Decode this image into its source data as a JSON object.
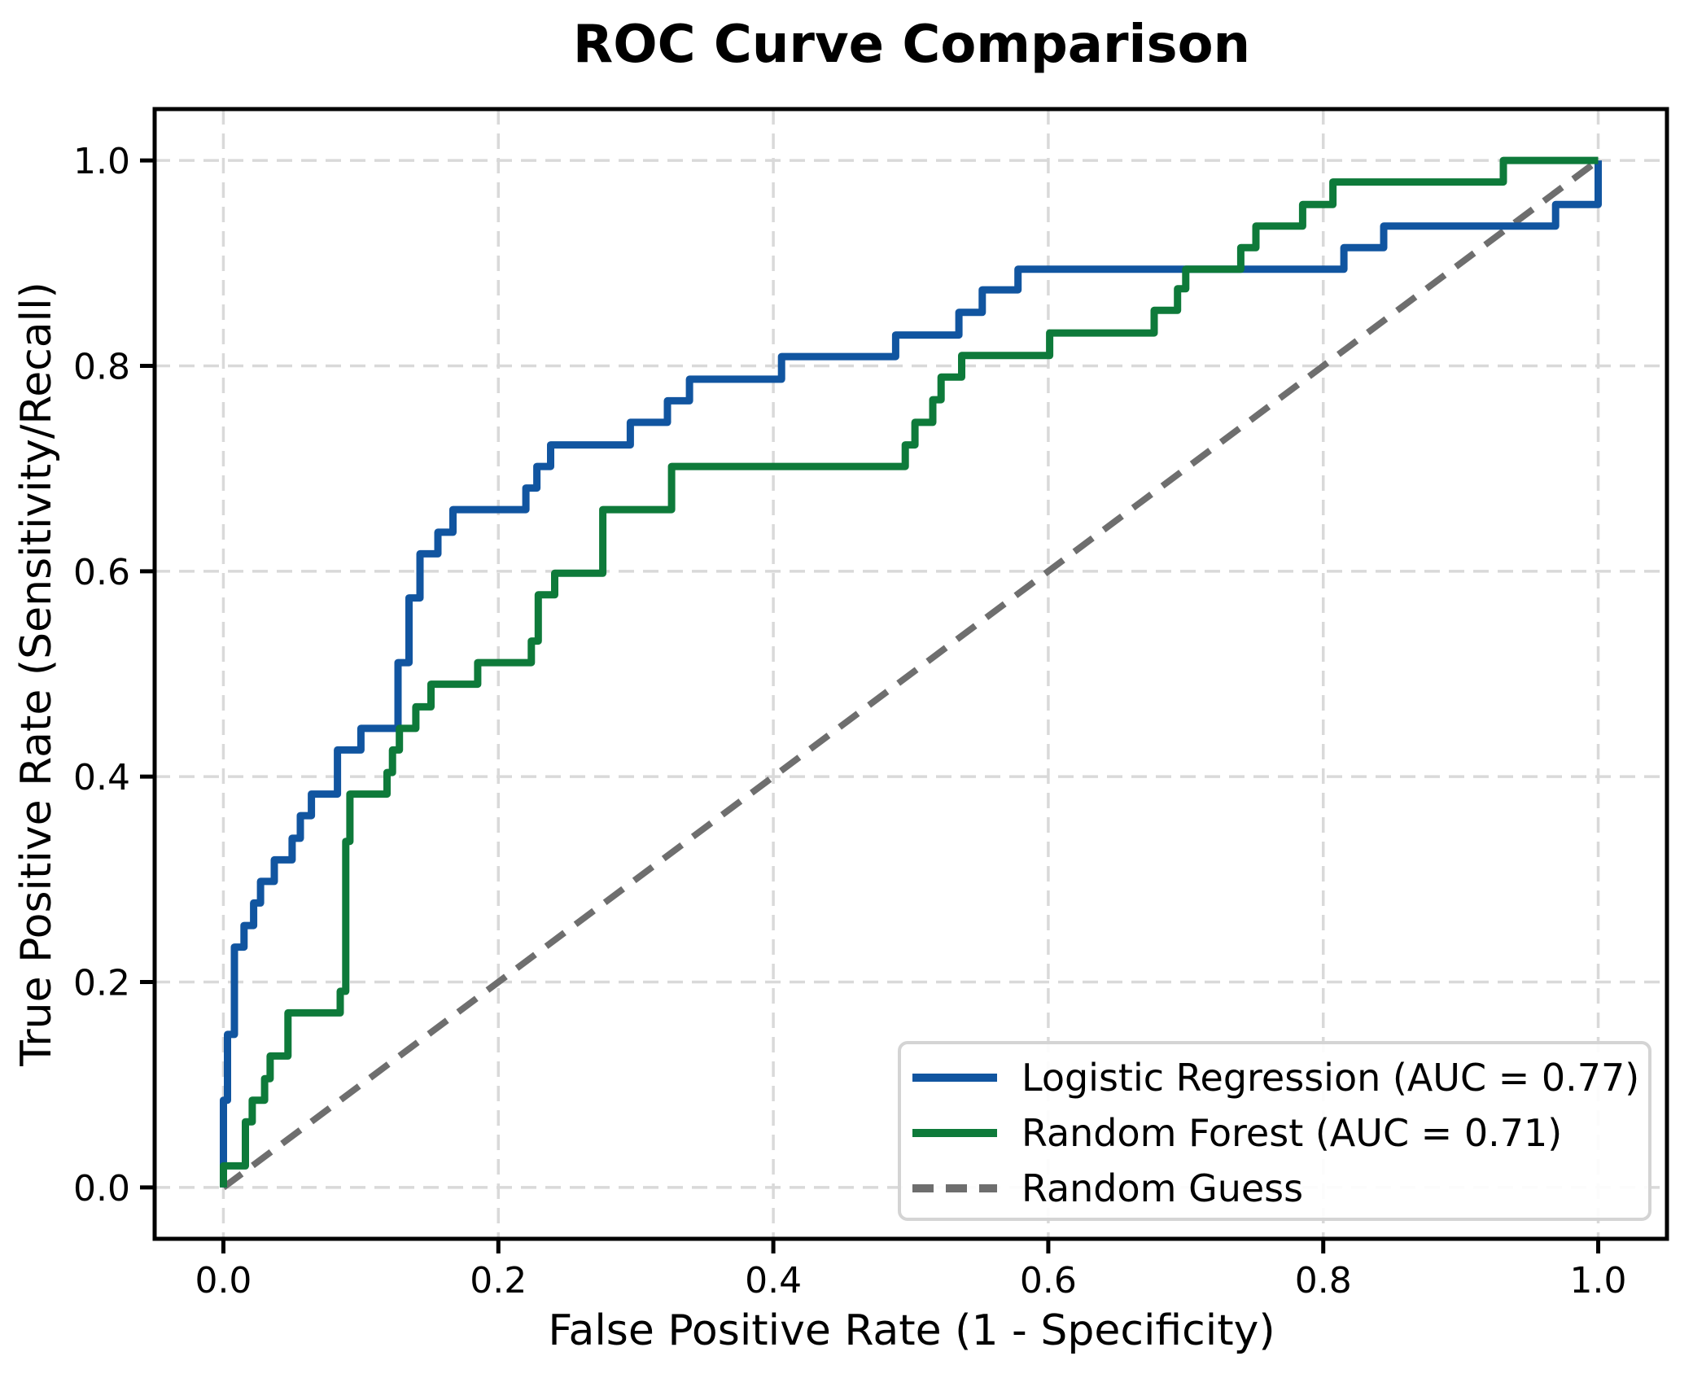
{
  "chart_data": {
    "type": "line",
    "subtype": "roc-step-curves",
    "title": "ROC Curve Comparison",
    "xlabel": "False Positive Rate (1 - Specificity)",
    "ylabel": "True Positive Rate (Sensitivity/Recall)",
    "xlim": [
      -0.05,
      1.05
    ],
    "ylim": [
      -0.05,
      1.05
    ],
    "xticks": [
      0.0,
      0.2,
      0.4,
      0.6,
      0.8,
      1.0
    ],
    "yticks": [
      0.0,
      0.2,
      0.4,
      0.6,
      0.8,
      1.0
    ],
    "grid": true,
    "grid_style": "dashed",
    "legend_position": "lower right",
    "series": [
      {
        "name": "Logistic Regression (AUC = 0.77)",
        "auc_shown": "0.77",
        "color": "#1155a0",
        "style": "step",
        "line_width": 9,
        "points": [
          [
            0,
            0
          ],
          [
            0,
            0.085
          ],
          [
            0.003,
            0.085
          ],
          [
            0.003,
            0.149
          ],
          [
            0.008,
            0.149
          ],
          [
            0.008,
            0.234
          ],
          [
            0.015,
            0.234
          ],
          [
            0.015,
            0.255
          ],
          [
            0.022,
            0.255
          ],
          [
            0.022,
            0.277
          ],
          [
            0.027,
            0.277
          ],
          [
            0.027,
            0.298
          ],
          [
            0.037,
            0.298
          ],
          [
            0.037,
            0.319
          ],
          [
            0.05,
            0.319
          ],
          [
            0.05,
            0.34
          ],
          [
            0.056,
            0.34
          ],
          [
            0.056,
            0.362
          ],
          [
            0.064,
            0.362
          ],
          [
            0.064,
            0.383
          ],
          [
            0.083,
            0.383
          ],
          [
            0.083,
            0.426
          ],
          [
            0.1,
            0.426
          ],
          [
            0.1,
            0.447
          ],
          [
            0.127,
            0.447
          ],
          [
            0.127,
            0.511
          ],
          [
            0.135,
            0.511
          ],
          [
            0.135,
            0.574
          ],
          [
            0.143,
            0.574
          ],
          [
            0.143,
            0.617
          ],
          [
            0.156,
            0.617
          ],
          [
            0.156,
            0.638
          ],
          [
            0.167,
            0.638
          ],
          [
            0.167,
            0.66
          ],
          [
            0.22,
            0.66
          ],
          [
            0.22,
            0.681
          ],
          [
            0.228,
            0.681
          ],
          [
            0.228,
            0.702
          ],
          [
            0.238,
            0.702
          ],
          [
            0.238,
            0.723
          ],
          [
            0.296,
            0.723
          ],
          [
            0.296,
            0.745
          ],
          [
            0.323,
            0.745
          ],
          [
            0.323,
            0.766
          ],
          [
            0.339,
            0.766
          ],
          [
            0.339,
            0.787
          ],
          [
            0.406,
            0.787
          ],
          [
            0.406,
            0.809
          ],
          [
            0.489,
            0.809
          ],
          [
            0.489,
            0.83
          ],
          [
            0.535,
            0.83
          ],
          [
            0.535,
            0.852
          ],
          [
            0.552,
            0.852
          ],
          [
            0.552,
            0.874
          ],
          [
            0.578,
            0.874
          ],
          [
            0.578,
            0.894
          ],
          [
            0.815,
            0.894
          ],
          [
            0.815,
            0.915
          ],
          [
            0.844,
            0.915
          ],
          [
            0.844,
            0.936
          ],
          [
            0.969,
            0.936
          ],
          [
            0.969,
            0.957
          ],
          [
            1,
            0.957
          ],
          [
            1,
            1
          ]
        ]
      },
      {
        "name": "Random Forest (AUC = 0.71)",
        "auc_shown": "0.71",
        "color": "#0e7a3a",
        "style": "step",
        "line_width": 9,
        "points": [
          [
            0,
            0
          ],
          [
            0,
            0.021
          ],
          [
            0.016,
            0.021
          ],
          [
            0.016,
            0.064
          ],
          [
            0.021,
            0.064
          ],
          [
            0.021,
            0.085
          ],
          [
            0.03,
            0.085
          ],
          [
            0.03,
            0.106
          ],
          [
            0.034,
            0.106
          ],
          [
            0.034,
            0.128
          ],
          [
            0.047,
            0.128
          ],
          [
            0.047,
            0.17
          ],
          [
            0.085,
            0.17
          ],
          [
            0.085,
            0.191
          ],
          [
            0.089,
            0.191
          ],
          [
            0.089,
            0.337
          ],
          [
            0.092,
            0.337
          ],
          [
            0.092,
            0.383
          ],
          [
            0.119,
            0.383
          ],
          [
            0.119,
            0.404
          ],
          [
            0.123,
            0.404
          ],
          [
            0.123,
            0.426
          ],
          [
            0.128,
            0.426
          ],
          [
            0.128,
            0.447
          ],
          [
            0.14,
            0.447
          ],
          [
            0.14,
            0.468
          ],
          [
            0.151,
            0.468
          ],
          [
            0.151,
            0.49
          ],
          [
            0.185,
            0.49
          ],
          [
            0.185,
            0.511
          ],
          [
            0.224,
            0.511
          ],
          [
            0.224,
            0.532
          ],
          [
            0.229,
            0.532
          ],
          [
            0.229,
            0.577
          ],
          [
            0.241,
            0.577
          ],
          [
            0.241,
            0.598
          ],
          [
            0.276,
            0.598
          ],
          [
            0.276,
            0.66
          ],
          [
            0.326,
            0.66
          ],
          [
            0.326,
            0.702
          ],
          [
            0.496,
            0.702
          ],
          [
            0.496,
            0.723
          ],
          [
            0.503,
            0.723
          ],
          [
            0.503,
            0.745
          ],
          [
            0.516,
            0.745
          ],
          [
            0.516,
            0.767
          ],
          [
            0.522,
            0.767
          ],
          [
            0.522,
            0.789
          ],
          [
            0.537,
            0.789
          ],
          [
            0.537,
            0.81
          ],
          [
            0.601,
            0.81
          ],
          [
            0.601,
            0.832
          ],
          [
            0.677,
            0.832
          ],
          [
            0.677,
            0.854
          ],
          [
            0.694,
            0.854
          ],
          [
            0.694,
            0.875
          ],
          [
            0.7,
            0.875
          ],
          [
            0.7,
            0.894
          ],
          [
            0.74,
            0.894
          ],
          [
            0.74,
            0.915
          ],
          [
            0.751,
            0.915
          ],
          [
            0.751,
            0.936
          ],
          [
            0.785,
            0.936
          ],
          [
            0.785,
            0.957
          ],
          [
            0.807,
            0.957
          ],
          [
            0.807,
            0.979
          ],
          [
            0.931,
            0.979
          ],
          [
            0.931,
            1
          ],
          [
            1,
            1
          ]
        ]
      },
      {
        "name": "Random Guess",
        "color": "#6e6e6e",
        "style": "dashed",
        "line_width": 8,
        "points": [
          [
            0,
            0
          ],
          [
            1,
            1
          ]
        ]
      }
    ]
  },
  "colors": {
    "background": "#ffffff",
    "spine": "#000000",
    "grid": "#d9d9d9",
    "text": "#000000",
    "legend_border": "#d4d4d4",
    "legend_background": "#ffffff"
  }
}
